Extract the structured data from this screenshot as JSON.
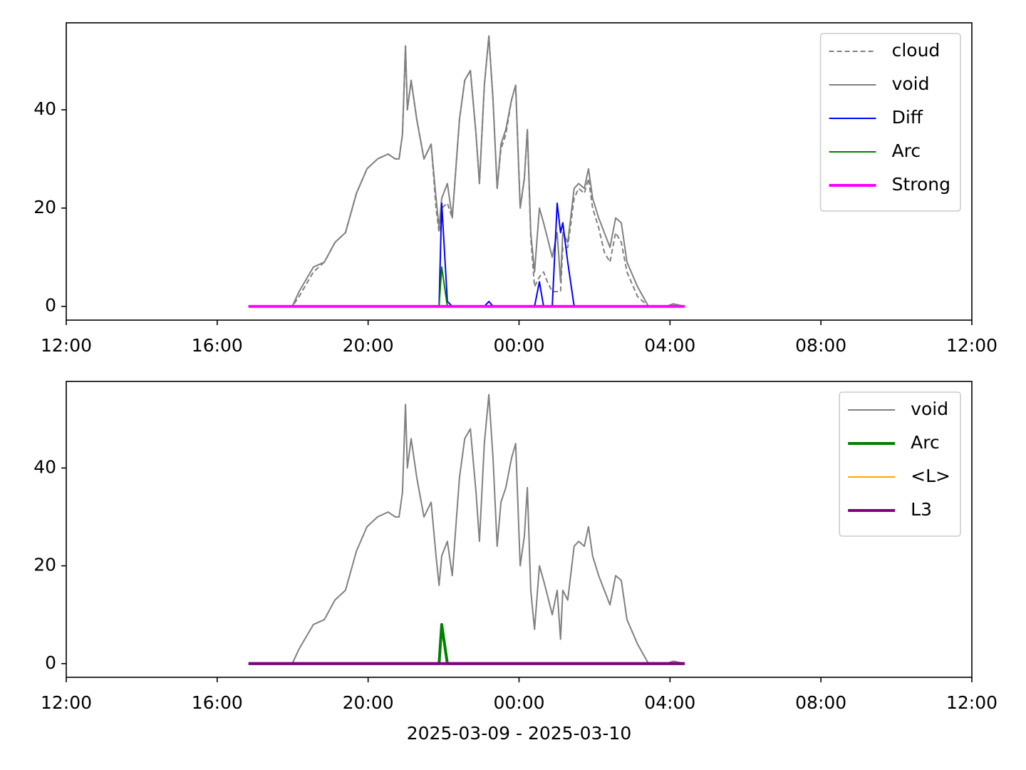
{
  "chart_data": [
    {
      "type": "line",
      "x": [
        4.83,
        5.99,
        6.17,
        6.55,
        6.84,
        7.12,
        7.4,
        7.69,
        7.97,
        8.25,
        8.53,
        8.72,
        8.82,
        8.91,
        8.99,
        9.04,
        9.14,
        9.29,
        9.48,
        9.67,
        9.8,
        9.88,
        9.95,
        10.1,
        10.23,
        10.42,
        10.56,
        10.71,
        10.86,
        10.95,
        11.08,
        11.2,
        11.31,
        11.42,
        11.52,
        11.65,
        11.8,
        11.91,
        12.03,
        12.14,
        12.22,
        12.31,
        12.41,
        12.54,
        12.65,
        12.75,
        12.88,
        13.01,
        13.1,
        13.16,
        13.29,
        13.46,
        13.58,
        13.73,
        13.84,
        13.95,
        14.11,
        14.26,
        14.41,
        14.56,
        14.71,
        14.86,
        15.14,
        15.43,
        15.9,
        16.09,
        16.39
      ],
      "series": [
        {
          "name": "cloud",
          "color": "#808080",
          "linestyle": "dashed",
          "linewidth": 2,
          "values": [
            0,
            0,
            2,
            7,
            9,
            13,
            15,
            23,
            28,
            30,
            31,
            30,
            30,
            35,
            53,
            40,
            46,
            38,
            30,
            33,
            20,
            15,
            20,
            21,
            18,
            38,
            46,
            48,
            35,
            25,
            45,
            55,
            42,
            24,
            32,
            35,
            42,
            45,
            20,
            26,
            36,
            14,
            4,
            6,
            7,
            5,
            3,
            3,
            3,
            12,
            12,
            22,
            24,
            23,
            26,
            20,
            16,
            11,
            9,
            15,
            13,
            7,
            2,
            0,
            0,
            0.5,
            0
          ]
        },
        {
          "name": "void",
          "color": "#808080",
          "linestyle": "solid",
          "linewidth": 2,
          "values": [
            0,
            0,
            3,
            8,
            9,
            13,
            15,
            23,
            28,
            30,
            31,
            30,
            30,
            35,
            53,
            40,
            46,
            38,
            30,
            33,
            22,
            16,
            22,
            25,
            18,
            38,
            46,
            48,
            35,
            25,
            45,
            55,
            42,
            24,
            33,
            36,
            42,
            45,
            20,
            26,
            36,
            15,
            7,
            20,
            17,
            14,
            10,
            15,
            5,
            15,
            13,
            24,
            25,
            24,
            28,
            22,
            18,
            15,
            12,
            18,
            17,
            9,
            4,
            0,
            0,
            0.5,
            0
          ]
        },
        {
          "name": "Diff",
          "color": "#0000ff",
          "linestyle": "solid",
          "linewidth": 2,
          "values": [
            0,
            0,
            0,
            0,
            0,
            0,
            0,
            0,
            0,
            0,
            0,
            0,
            0,
            0,
            0,
            0,
            0,
            0,
            0,
            0,
            0,
            0,
            21,
            1,
            0,
            0,
            0,
            0,
            0,
            0,
            0,
            1,
            0,
            0,
            0,
            0,
            0,
            0,
            0,
            0,
            0,
            0,
            0,
            5,
            0,
            0,
            0,
            21,
            15,
            17,
            9,
            0,
            0,
            0,
            0,
            0,
            0,
            0,
            0,
            0,
            0,
            0,
            0,
            0,
            0,
            0,
            0
          ]
        },
        {
          "name": "Arc",
          "color": "#008000",
          "linestyle": "solid",
          "linewidth": 2,
          "values": [
            0,
            0,
            0,
            0,
            0,
            0,
            0,
            0,
            0,
            0,
            0,
            0,
            0,
            0,
            0,
            0,
            0,
            0,
            0,
            0,
            0,
            0,
            8,
            0,
            0,
            0,
            0,
            0,
            0,
            0,
            0,
            0,
            0,
            0,
            0,
            0,
            0,
            0,
            0,
            0,
            0,
            0,
            0,
            0,
            0,
            0,
            0,
            0,
            0,
            0,
            0,
            0,
            0,
            0,
            0,
            0,
            0,
            0,
            0,
            0,
            0,
            0,
            0,
            0,
            0,
            0,
            0
          ]
        },
        {
          "name": "Strong",
          "color": "#ff00ff",
          "linestyle": "solid",
          "linewidth": 4,
          "values": [
            0,
            0,
            0,
            0,
            0,
            0,
            0,
            0,
            0,
            0,
            0,
            0,
            0,
            0,
            0,
            0,
            0,
            0,
            0,
            0,
            0,
            0,
            0,
            0,
            0,
            0,
            0,
            0,
            0,
            0,
            0,
            0,
            0,
            0,
            0,
            0,
            0,
            0,
            0,
            0,
            0,
            0,
            0,
            0,
            0,
            0,
            0,
            0,
            0,
            0,
            0,
            0,
            0,
            0,
            0,
            0,
            0,
            0,
            0,
            0,
            0,
            0,
            0,
            0,
            0,
            0,
            0
          ]
        }
      ],
      "xlim": [
        0,
        24
      ],
      "xticks": [
        {
          "value": 0,
          "label": "12:00"
        },
        {
          "value": 4,
          "label": "16:00"
        },
        {
          "value": 8,
          "label": "20:00"
        },
        {
          "value": 12,
          "label": "00:00"
        },
        {
          "value": 16,
          "label": "04:00"
        },
        {
          "value": 20,
          "label": "08:00"
        },
        {
          "value": 24,
          "label": "12:00"
        }
      ],
      "ylim": [
        -2.8,
        57.7
      ],
      "yticks": [
        0,
        20,
        40
      ],
      "legend": "upper right"
    },
    {
      "type": "line",
      "x": [
        4.83,
        5.99,
        6.17,
        6.55,
        6.84,
        7.12,
        7.4,
        7.69,
        7.97,
        8.25,
        8.53,
        8.72,
        8.82,
        8.91,
        8.99,
        9.04,
        9.14,
        9.29,
        9.48,
        9.67,
        9.8,
        9.88,
        9.95,
        10.1,
        10.23,
        10.42,
        10.56,
        10.71,
        10.86,
        10.95,
        11.08,
        11.2,
        11.31,
        11.42,
        11.52,
        11.65,
        11.8,
        11.91,
        12.03,
        12.14,
        12.22,
        12.31,
        12.41,
        12.54,
        12.65,
        12.75,
        12.88,
        13.01,
        13.1,
        13.16,
        13.29,
        13.46,
        13.58,
        13.73,
        13.84,
        13.95,
        14.11,
        14.26,
        14.41,
        14.56,
        14.71,
        14.86,
        15.14,
        15.43,
        15.9,
        16.09,
        16.39
      ],
      "series": [
        {
          "name": "void",
          "color": "#808080",
          "linestyle": "solid",
          "linewidth": 2,
          "values": [
            0,
            0,
            3,
            8,
            9,
            13,
            15,
            23,
            28,
            30,
            31,
            30,
            30,
            35,
            53,
            40,
            46,
            38,
            30,
            33,
            22,
            16,
            22,
            25,
            18,
            38,
            46,
            48,
            35,
            25,
            45,
            55,
            42,
            24,
            33,
            36,
            42,
            45,
            20,
            26,
            36,
            15,
            7,
            20,
            17,
            14,
            10,
            15,
            5,
            15,
            13,
            24,
            25,
            24,
            28,
            22,
            18,
            15,
            12,
            18,
            17,
            9,
            4,
            0,
            0,
            0.5,
            0
          ]
        },
        {
          "name": "Arc",
          "color": "#008000",
          "linestyle": "solid",
          "linewidth": 4,
          "values": [
            0,
            0,
            0,
            0,
            0,
            0,
            0,
            0,
            0,
            0,
            0,
            0,
            0,
            0,
            0,
            0,
            0,
            0,
            0,
            0,
            0,
            0,
            8,
            0,
            0,
            0,
            0,
            0,
            0,
            0,
            0,
            0,
            0,
            0,
            0,
            0,
            0,
            0,
            0,
            0,
            0,
            0,
            0,
            0,
            0,
            0,
            0,
            0,
            0,
            0,
            0,
            0,
            0,
            0,
            0,
            0,
            0,
            0,
            0,
            0,
            0,
            0,
            0,
            0,
            0,
            0,
            0
          ]
        },
        {
          "name": "<L>",
          "color": "#ffa500",
          "linestyle": "solid",
          "linewidth": 2,
          "values": [
            0,
            0,
            0,
            0,
            0,
            0,
            0,
            0,
            0,
            0,
            0,
            0,
            0,
            0,
            0,
            0,
            0,
            0,
            0,
            0,
            0,
            0,
            0,
            0,
            0,
            0,
            0,
            0,
            0,
            0,
            0,
            0,
            0,
            0,
            0,
            0,
            0,
            0,
            0,
            0,
            0,
            0,
            0,
            0,
            0,
            0,
            0,
            0,
            0,
            0,
            0,
            0,
            0,
            0,
            0,
            0,
            0,
            0,
            0,
            0,
            0,
            0,
            0,
            0,
            0,
            0,
            0
          ]
        },
        {
          "name": "L3",
          "color": "#800080",
          "linestyle": "solid",
          "linewidth": 4,
          "values": [
            0,
            0,
            0,
            0,
            0,
            0,
            0,
            0,
            0,
            0,
            0,
            0,
            0,
            0,
            0,
            0,
            0,
            0,
            0,
            0,
            0,
            0,
            0,
            0,
            0,
            0,
            0,
            0,
            0,
            0,
            0,
            0,
            0,
            0,
            0,
            0,
            0,
            0,
            0,
            0,
            0,
            0,
            0,
            0,
            0,
            0,
            0,
            0,
            0,
            0,
            0,
            0,
            0,
            0,
            0,
            0,
            0,
            0,
            0,
            0,
            0,
            0,
            0,
            0,
            0,
            0,
            0
          ]
        }
      ],
      "xlim": [
        0,
        24
      ],
      "xticks": [
        {
          "value": 0,
          "label": "12:00"
        },
        {
          "value": 4,
          "label": "16:00"
        },
        {
          "value": 8,
          "label": "20:00"
        },
        {
          "value": 12,
          "label": "00:00"
        },
        {
          "value": 16,
          "label": "04:00"
        },
        {
          "value": 20,
          "label": "08:00"
        },
        {
          "value": 24,
          "label": "12:00"
        }
      ],
      "ylim": [
        -2.8,
        57.7
      ],
      "yticks": [
        0,
        20,
        40
      ],
      "legend": "upper right",
      "xlabel": "2025-03-09 - 2025-03-10"
    }
  ]
}
